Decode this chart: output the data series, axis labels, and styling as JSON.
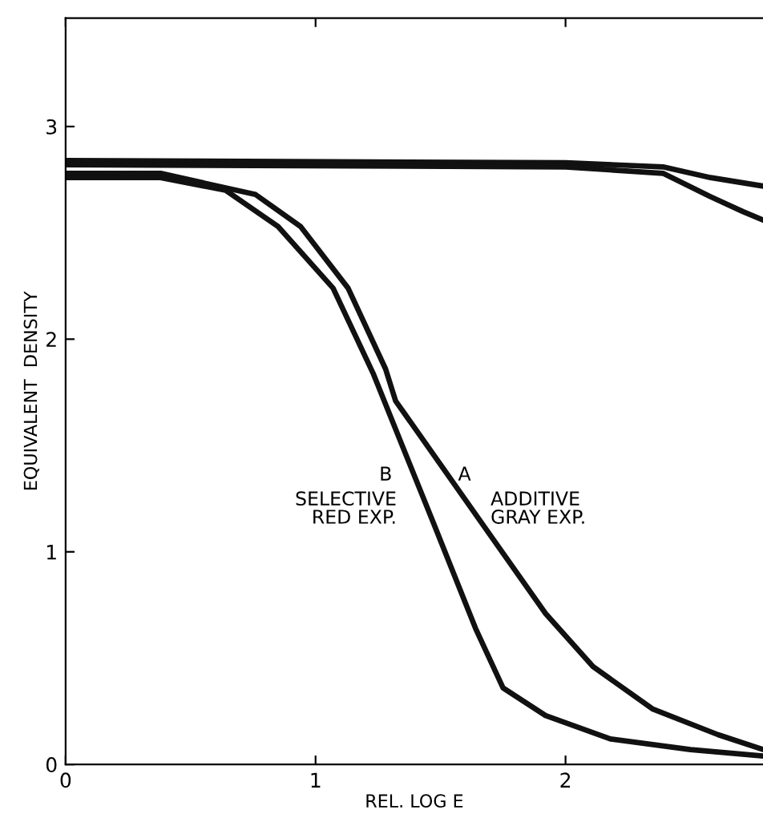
{
  "chart_data": {
    "type": "line",
    "xlabel": "REL. LOG E",
    "ylabel": "EQUIVALENT  DENSITY",
    "xlim": [
      0,
      2.79
    ],
    "ylim": [
      0,
      3.51
    ],
    "xticks": [
      0,
      1,
      2
    ],
    "yticks": [
      0,
      1,
      2,
      3
    ],
    "grid": false,
    "legend": false,
    "marker": "none",
    "line_style": "solid",
    "series": [
      {
        "name": "B",
        "color": "#111111",
        "x": [
          0,
          0.38,
          0.64,
          0.85,
          1.07,
          1.23,
          1.47,
          1.64,
          1.75,
          1.92,
          2.18,
          2.5,
          2.79
        ],
        "values": [
          2.76,
          2.76,
          2.7,
          2.53,
          2.24,
          1.84,
          1.14,
          0.64,
          0.36,
          0.23,
          0.12,
          0.07,
          0.04
        ]
      },
      {
        "name": "A",
        "color": "#111111",
        "x": [
          0,
          0.38,
          0.76,
          0.94,
          1.13,
          1.28,
          1.32,
          1.71,
          1.92,
          2.11,
          2.35,
          2.61,
          2.79
        ],
        "values": [
          2.78,
          2.78,
          2.68,
          2.53,
          2.24,
          1.86,
          1.71,
          1.06,
          0.71,
          0.46,
          0.26,
          0.14,
          0.07
        ]
      },
      {
        "color": "#111111",
        "x": [
          0,
          2.0,
          2.39,
          2.58,
          2.79
        ],
        "values": [
          2.84,
          2.83,
          2.81,
          2.76,
          2.72
        ]
      },
      {
        "color": "#111111",
        "x": [
          0,
          2.0,
          2.39,
          2.58,
          2.71,
          2.79
        ],
        "values": [
          2.82,
          2.81,
          2.78,
          2.67,
          2.6,
          2.56
        ]
      }
    ],
    "annotations": [
      "SELECTIVE\nRED EXP.",
      "ADDITIVE\nGRAY EXP."
    ]
  }
}
